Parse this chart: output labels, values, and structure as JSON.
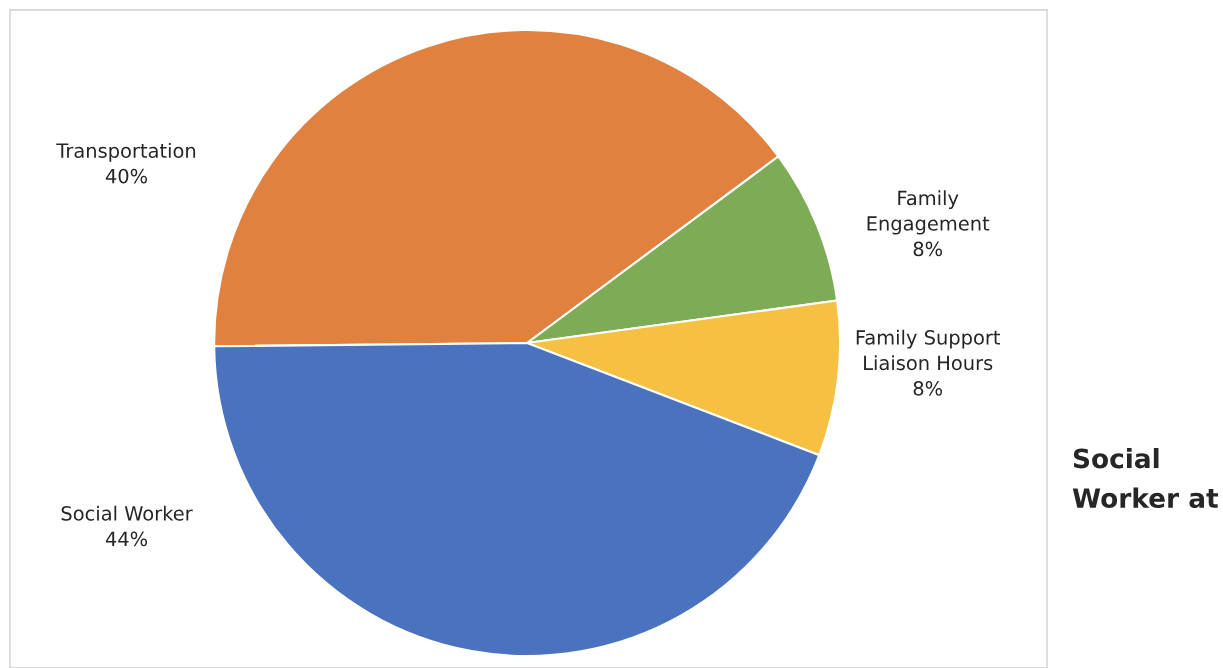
{
  "chart_data": {
    "type": "pie",
    "categories": [
      "Transportation",
      "Family Engagement",
      "Family Support Liaison Hours",
      "Social Worker"
    ],
    "values": [
      40,
      8,
      8,
      44
    ],
    "value_labels": [
      "40%",
      "8%",
      "8%",
      "44%"
    ],
    "colors": [
      "#e0813f",
      "#7eab55",
      "#f6c143",
      "#4a72be"
    ],
    "legend": false,
    "annotations": [
      "Social\nWorker at"
    ]
  }
}
